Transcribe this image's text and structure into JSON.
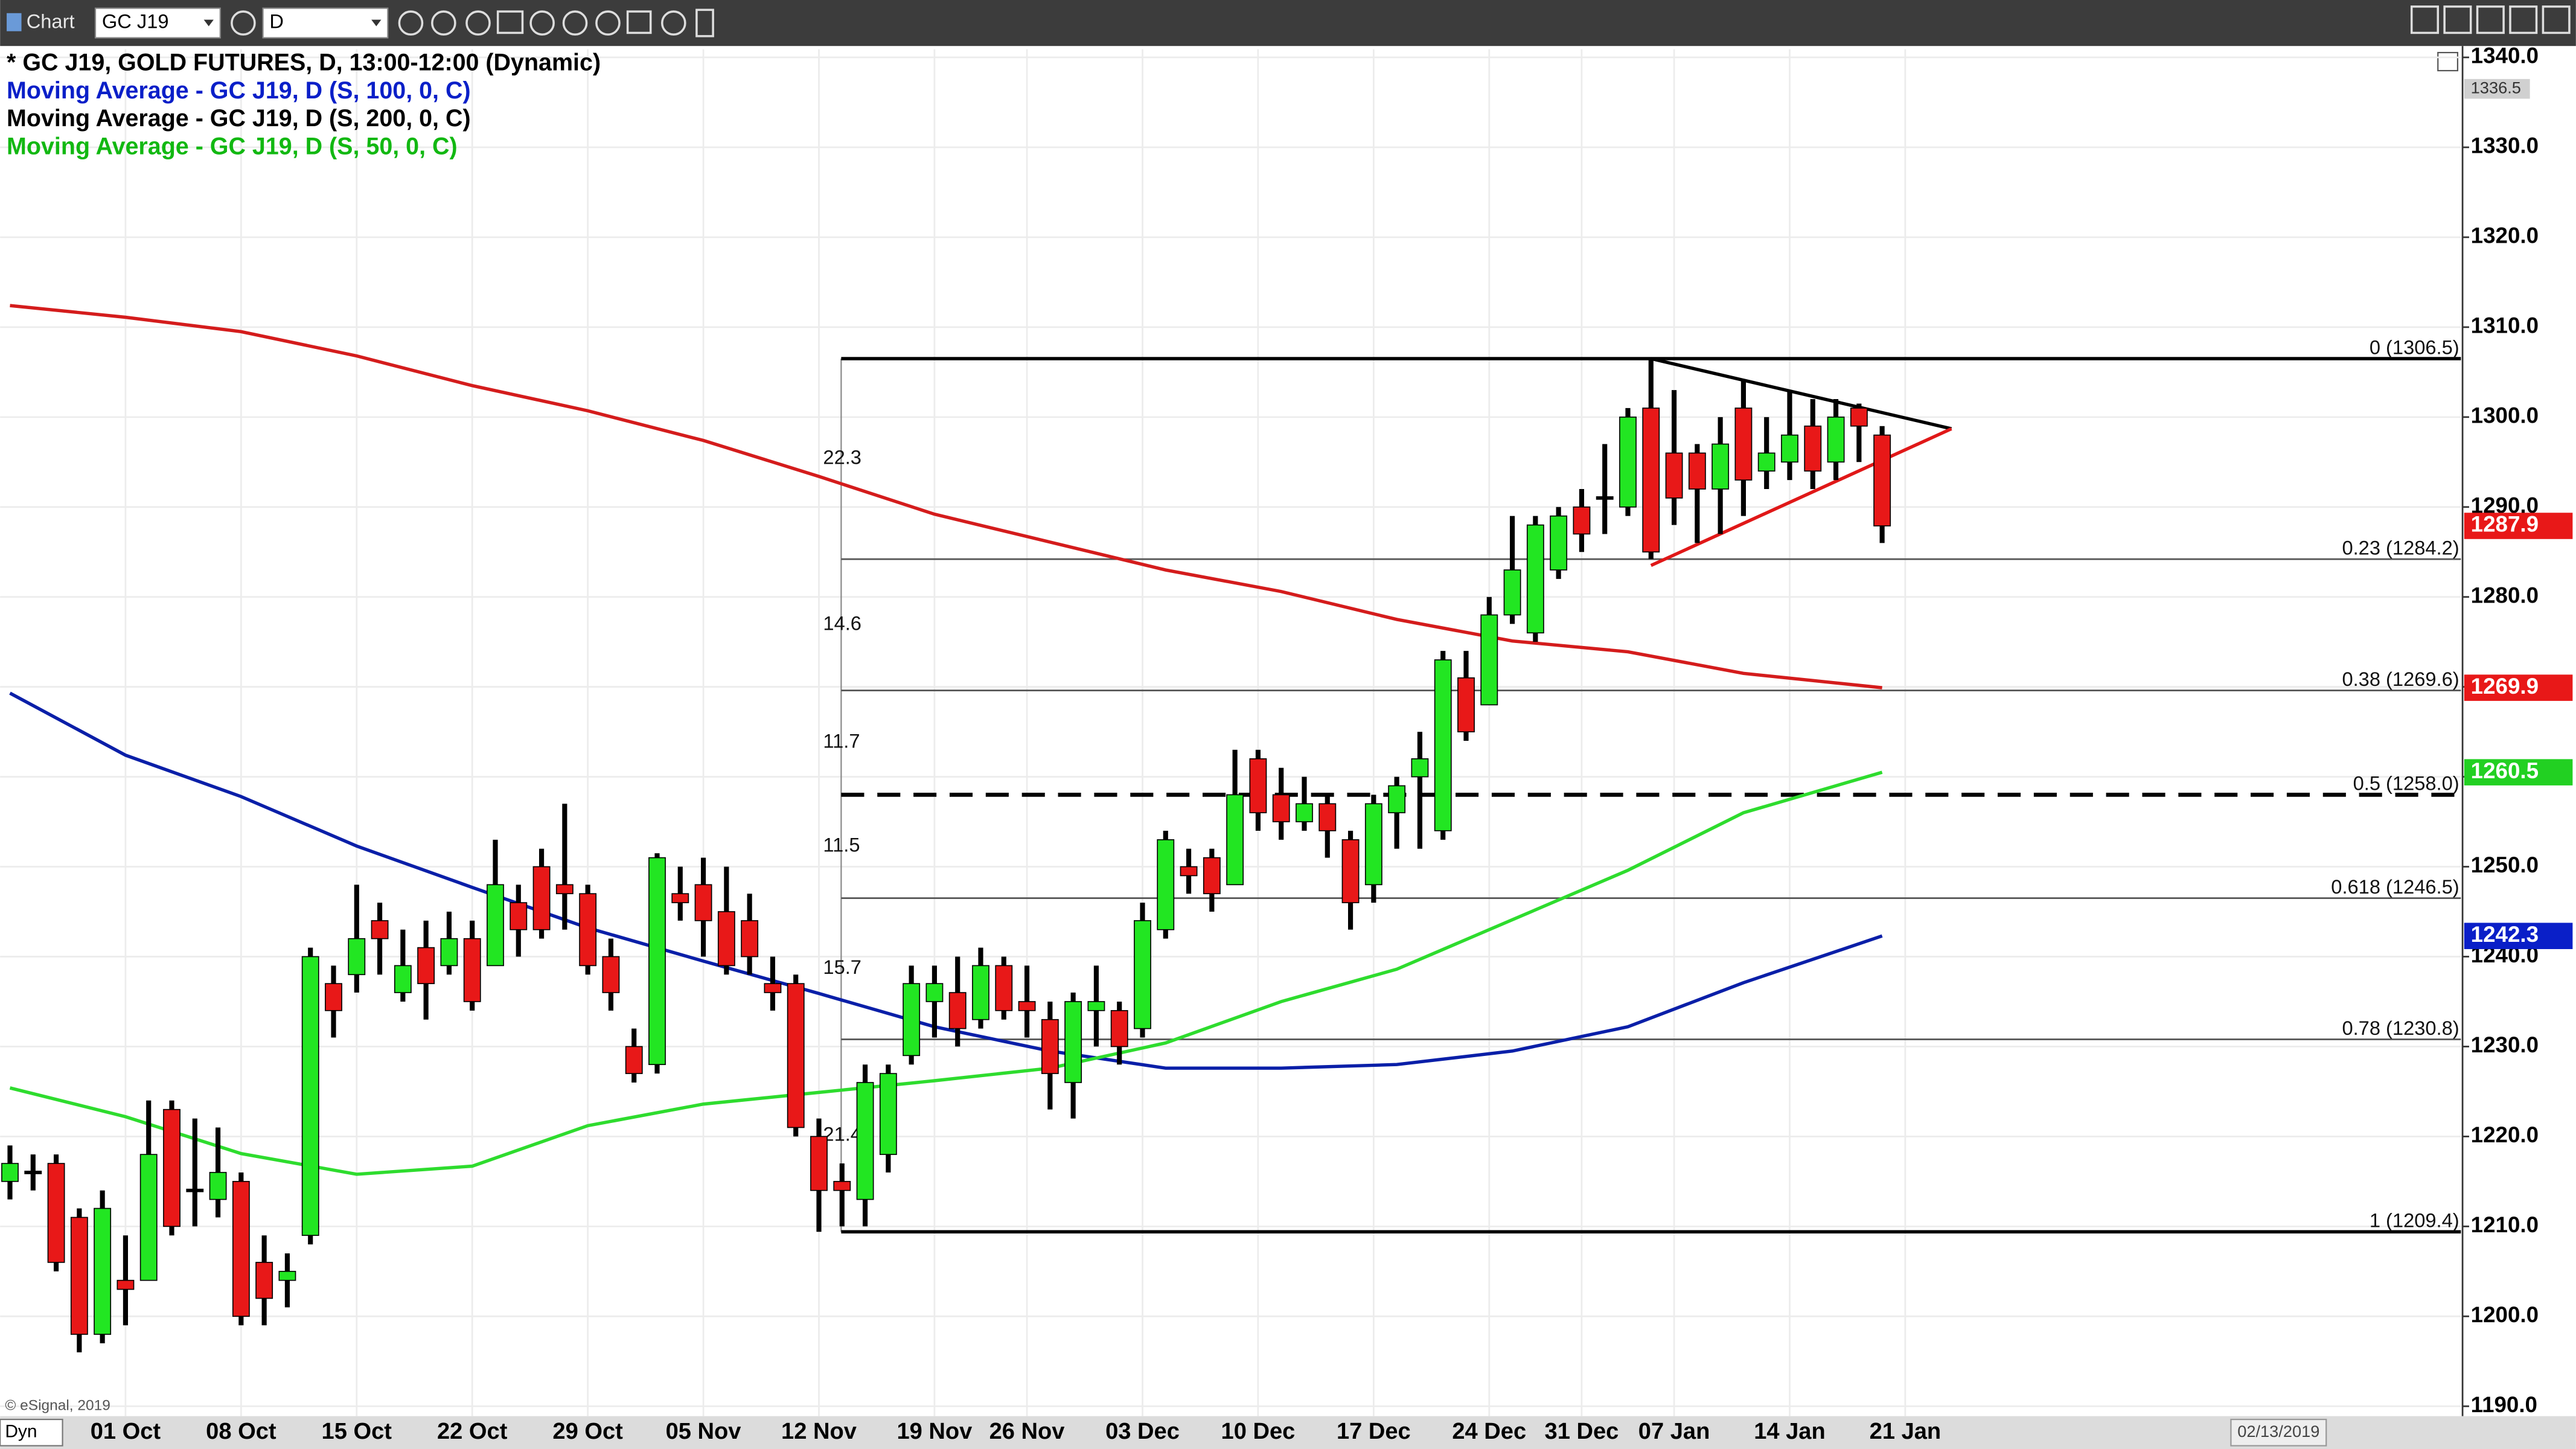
{
  "ui": {
    "app": "Chart",
    "symbol": "GC J19",
    "interval": "D",
    "copyright": "© eSignal, 2019",
    "mode": "Dyn",
    "date": "02/13/2019"
  },
  "chart_data": {
    "type": "candlestick",
    "title": "* GC J19, GOLD FUTURES, D, 13:00-12:00 (Dynamic)",
    "up_color": "#22e622",
    "down_color": "#e81818",
    "grid": true,
    "categories": [
      null,
      null,
      null,
      null,
      null,
      "01 Oct",
      null,
      null,
      null,
      null,
      "08 Oct",
      null,
      null,
      null,
      null,
      "15 Oct",
      null,
      null,
      null,
      null,
      "22 Oct",
      null,
      null,
      null,
      null,
      "29 Oct",
      null,
      null,
      null,
      null,
      "05 Nov",
      null,
      null,
      null,
      null,
      "12 Nov",
      null,
      null,
      null,
      null,
      "19 Nov",
      null,
      null,
      null,
      "26 Nov",
      null,
      null,
      null,
      null,
      "03 Dec",
      null,
      null,
      null,
      null,
      "10 Dec",
      null,
      null,
      null,
      null,
      "17 Dec",
      null,
      null,
      null,
      null,
      "24 Dec",
      null,
      null,
      null,
      "31 Dec",
      null,
      null,
      null,
      "07 Jan",
      null,
      null,
      null,
      null,
      "14 Jan",
      null,
      null,
      null,
      null,
      "21 Jan"
    ],
    "open": [
      1215,
      1216,
      1217,
      1211,
      1198,
      1204,
      1204,
      1223,
      1214,
      1213,
      1215,
      1206,
      1204,
      1209,
      1237,
      1238,
      1244,
      1236,
      1241,
      1239,
      1242,
      1239,
      1246,
      1250,
      1248,
      1247,
      1240,
      1230,
      1228,
      1247,
      1248,
      1245,
      1244,
      1237,
      1237,
      1220,
      1215,
      1213,
      1218,
      1229,
      1235,
      1236,
      1233,
      1239,
      1235,
      1233,
      1226,
      1234,
      1234,
      1232,
      1243,
      1250,
      1251,
      1248,
      1262,
      1258,
      1255,
      1257,
      1253,
      1248,
      1256,
      1260,
      1254,
      1271,
      1268,
      1278,
      1276,
      1283,
      1290,
      1291,
      1290,
      1301,
      1296,
      1296,
      1292,
      1301,
      1294,
      1295,
      1299,
      1295,
      1301,
      1298,
      null
    ],
    "high": [
      1219,
      1218,
      1218,
      1212,
      1214,
      1209,
      1224,
      1224,
      1222,
      1221,
      1216,
      1209,
      1207,
      1241,
      1239,
      1248,
      1246,
      1243,
      1244,
      1245,
      1244,
      1253,
      1248,
      1252,
      1257,
      1248,
      1242,
      1232,
      1251.5,
      1250,
      1251,
      1250,
      1247,
      1240,
      1238,
      1222,
      1217,
      1228,
      1228,
      1239,
      1239,
      1240,
      1241,
      1240,
      1239,
      1235,
      1236,
      1239,
      1235,
      1246,
      1254,
      1252,
      1252,
      1263,
      1263,
      1261,
      1260,
      1258,
      1254,
      1258,
      1260,
      1265,
      1274,
      1274,
      1280,
      1289,
      1289,
      1290,
      1292,
      1297,
      1301,
      1306.5,
      1303,
      1297,
      1300,
      1304,
      1300,
      1303,
      1302,
      1302,
      1301.5,
      1299,
      null
    ],
    "low": [
      1213,
      1214,
      1205,
      1196,
      1197,
      1199,
      1204,
      1209,
      1210,
      1211,
      1199,
      1199,
      1201,
      1208,
      1231,
      1236,
      1238,
      1235,
      1233,
      1238,
      1234,
      1239,
      1240,
      1242,
      1243,
      1238,
      1234,
      1226,
      1227,
      1244,
      1240,
      1238,
      1238,
      1234,
      1220,
      1209.4,
      1210,
      1210,
      1216,
      1228,
      1231,
      1230,
      1232,
      1233,
      1231,
      1223,
      1222,
      1230,
      1228,
      1231,
      1242,
      1247,
      1245,
      1248,
      1254,
      1253,
      1254,
      1251,
      1243,
      1246,
      1252,
      1252,
      1253,
      1264,
      1268,
      1277,
      1275,
      1282,
      1285,
      1287,
      1289,
      1284.2,
      1288,
      1286,
      1287,
      1289,
      1292,
      1293,
      1292,
      1293,
      1295,
      1286,
      null
    ],
    "close": [
      1217,
      1216,
      1206,
      1198,
      1212,
      1203,
      1218,
      1210,
      1214,
      1216,
      1200,
      1202,
      1205,
      1240,
      1234,
      1242,
      1242,
      1239,
      1237,
      1242,
      1235,
      1248,
      1243,
      1243,
      1247,
      1239,
      1236,
      1227,
      1251,
      1246,
      1244,
      1239,
      1240,
      1236,
      1221,
      1214,
      1214,
      1226,
      1227,
      1237,
      1237,
      1232,
      1239,
      1234,
      1234,
      1227,
      1235,
      1235,
      1230,
      1244,
      1253,
      1249,
      1247,
      1258,
      1256,
      1255,
      1257,
      1254,
      1246,
      1257,
      1259,
      1262,
      1273,
      1265,
      1278,
      1283,
      1288,
      1289,
      1287,
      1291,
      1300,
      1285,
      1291,
      1292,
      1297,
      1293,
      1296,
      1298,
      1294,
      1300,
      1299,
      1287.9,
      null
    ],
    "series": [
      {
        "name": "Moving Average - GC J19, D (S, 100, 0, C)",
        "color": "#0a1fa8",
        "text_color": "#0a1fc8",
        "x": [
          0,
          5,
          10,
          15,
          20,
          25,
          30,
          35,
          40,
          45,
          50,
          55,
          60,
          65,
          70,
          75,
          81
        ],
        "values": [
          1269.3,
          1262.4,
          1257.8,
          1252.3,
          1247.7,
          1243.2,
          1239.5,
          1235.9,
          1232.2,
          1229.5,
          1227.6,
          1227.6,
          1228,
          1229.5,
          1232.2,
          1237.1,
          1242.3
        ]
      },
      {
        "name": "Moving Average - GC J19, D (S, 200, 0, C)",
        "color": "#d41c1c",
        "text_color": "#000000",
        "x": [
          0,
          5,
          10,
          15,
          20,
          25,
          30,
          35,
          40,
          45,
          50,
          55,
          60,
          65,
          70,
          75,
          81
        ],
        "values": [
          1312.4,
          1311.1,
          1309.5,
          1306.8,
          1303.5,
          1300.7,
          1297.4,
          1293.4,
          1289.2,
          1286.1,
          1283,
          1280.6,
          1277.5,
          1275.1,
          1273.9,
          1271.5,
          1269.9
        ]
      },
      {
        "name": "Moving Average - GC J19, D (S, 50, 0, C)",
        "color": "#2edc2e",
        "text_color": "#12b812",
        "x": [
          0,
          5,
          10,
          15,
          20,
          25,
          30,
          35,
          40,
          45,
          50,
          55,
          60,
          65,
          70,
          75,
          81
        ],
        "values": [
          1225.4,
          1222.2,
          1218.1,
          1215.8,
          1216.7,
          1221.2,
          1223.6,
          1224.9,
          1226.2,
          1227.6,
          1230.4,
          1235,
          1238.6,
          1244.1,
          1249.6,
          1256,
          1260.5
        ]
      }
    ],
    "fib_levels": [
      {
        "value": 1306.5,
        "label": "0 (1306.5)"
      },
      {
        "value": 1284.2,
        "label": "0.23 (1284.2)"
      },
      {
        "value": 1269.6,
        "label": "0.38 (1269.6)"
      },
      {
        "value": 1258.0,
        "label": "0.5 (1258.0)",
        "style": "dashed"
      },
      {
        "value": 1246.5,
        "label": "0.618 (1246.5)"
      },
      {
        "value": 1230.8,
        "label": "0.78 (1230.8)"
      },
      {
        "value": 1209.4,
        "label": "1 (1209.4)"
      }
    ],
    "fib_gaps": [
      22.3,
      14.6,
      11.7,
      11.5,
      15.7,
      21.4
    ],
    "trendlines": [
      {
        "color": "#000000",
        "x": [
          71,
          84
        ],
        "values": [
          1306.5,
          1298.7
        ]
      },
      {
        "color": "#e01818",
        "x": [
          71,
          84
        ],
        "values": [
          1283.5,
          1298.7
        ]
      }
    ],
    "price_badges": [
      {
        "value": 1336.5,
        "color": "#d0d0d0",
        "text_color": "#333333"
      },
      {
        "value": 1287.9,
        "color": "#e81818",
        "text_color": "#ffffff"
      },
      {
        "value": 1269.9,
        "color": "#e81818",
        "text_color": "#ffffff"
      },
      {
        "value": 1260.5,
        "color": "#22d022",
        "text_color": "#ffffff"
      },
      {
        "value": 1242.3,
        "color": "#0a1fc8",
        "text_color": "#ffffff"
      }
    ],
    "ylim": [
      1188.9,
      1340.9
    ],
    "yticks": [
      {
        "value": 1190,
        "label": "1190.0"
      },
      {
        "value": 1200,
        "label": "1200.0"
      },
      {
        "value": 1210,
        "label": "1210.0"
      },
      {
        "value": 1220,
        "label": "1220.0"
      },
      {
        "value": 1230,
        "label": "1230.0"
      },
      {
        "value": 1240,
        "label": "1240.0"
      },
      {
        "value": 1250,
        "label": "1250.0"
      },
      {
        "value": 1260,
        "label": "1260.0"
      },
      {
        "value": 1270,
        "label": "1270.0"
      },
      {
        "value": 1280,
        "label": "1280.0"
      },
      {
        "value": 1290,
        "label": "1290.0"
      },
      {
        "value": 1300,
        "label": "1300.0"
      },
      {
        "value": 1310,
        "label": "1310.0"
      },
      {
        "value": 1320,
        "label": "1320.0"
      },
      {
        "value": 1330,
        "label": "1330.0"
      },
      {
        "value": 1340,
        "label": "1340.0"
      }
    ]
  }
}
